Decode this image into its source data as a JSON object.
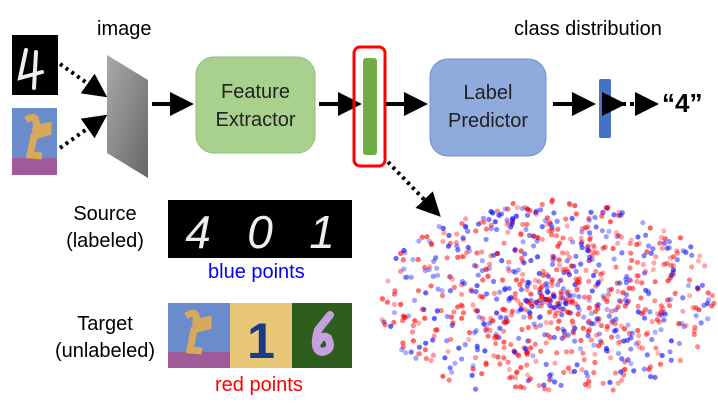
{
  "labels": {
    "image": "image",
    "class_distribution": "class distribution",
    "feature_extractor": [
      "Feature",
      "Extractor"
    ],
    "label_predictor": [
      "Label",
      "Predictor"
    ],
    "output_label": "“4”",
    "source": [
      "Source",
      "(labeled)"
    ],
    "target": [
      "Target",
      "(unlabeled)"
    ],
    "blue_points": "blue points",
    "red_points": "red points"
  },
  "source_digits": [
    "4",
    "0",
    "1"
  ],
  "target_digits": [
    "1"
  ],
  "colors": {
    "feature_extractor": "#a9d18e",
    "label_predictor": "#8faadc",
    "feature_bar": "#70ad47",
    "class_bar": "#4472c4",
    "highlight": "#ff0000",
    "blue_points": "#0000ff",
    "red_points": "#ff0000"
  }
}
